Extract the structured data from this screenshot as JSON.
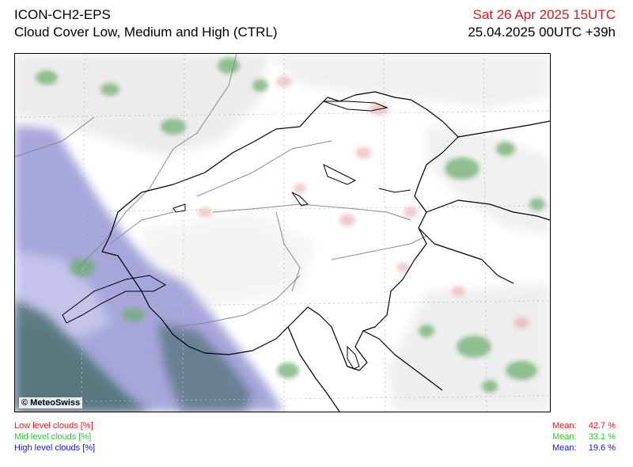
{
  "header": {
    "model": "ICON-CH2-EPS",
    "product": "Cloud Cover Low, Medium and High (CTRL)",
    "valid_time": "Sat 26 Apr 2025 15UTC",
    "run_info": "25.04.2025 00UTC +39h"
  },
  "map": {
    "copyright": "© MeteoSwiss"
  },
  "legend": [
    {
      "label": "Low level clouds [%]",
      "color": "#e8141b"
    },
    {
      "label": "Mid level clouds [%]",
      "color": "#1fd01f"
    },
    {
      "label": "High level clouds [%]",
      "color": "#1414e8"
    }
  ],
  "means": [
    {
      "label": "Mean:",
      "value": "42.7 %",
      "color": "#e8141b"
    },
    {
      "label": "Mean:",
      "value": "33.1 %",
      "color": "#1fd01f"
    },
    {
      "label": "Mean:",
      "value": "19.6 %",
      "color": "#1414e8"
    }
  ]
}
